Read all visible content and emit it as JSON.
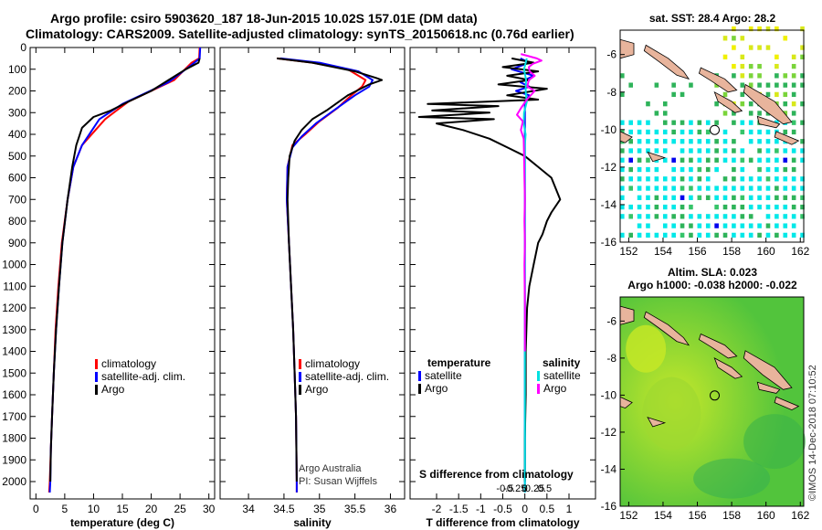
{
  "header": {
    "line1": "Argo profile: csiro 5903620_187 18-Jun-2015 10.02S 157.01E (DM data)",
    "line2": "Climatology: CARS2009. Satellite-adjusted climatology: synTS_20150618.nc (0.76d earlier)"
  },
  "colors": {
    "climatology": "#ff0000",
    "satellite": "#0000ff",
    "argo": "#000000",
    "sat_t": "#0000ff",
    "sat_s": "#00e0e0",
    "argo_s": "#ff00ff",
    "land": "#e8b49c"
  },
  "chart_data": [
    {
      "type": "line",
      "id": "temperature",
      "xlabel": "temperature (deg C)",
      "xlim": [
        -1,
        31
      ],
      "ylim": [
        0,
        2080
      ],
      "xticks": [
        "0",
        "5",
        "10",
        "15",
        "20",
        "25",
        "30"
      ],
      "yticks": [
        "0",
        "100",
        "200",
        "300",
        "400",
        "500",
        "600",
        "700",
        "800",
        "900",
        "1000",
        "1100",
        "1200",
        "1300",
        "1400",
        "1500",
        "1600",
        "1700",
        "1800",
        "1900",
        "2000"
      ],
      "legend": [
        "climatology",
        "satellite-adj. clim.",
        "Argo"
      ],
      "series": [
        {
          "name": "climatology",
          "color": "#ff0000",
          "points": [
            [
              28.4,
              0
            ],
            [
              28.3,
              50
            ],
            [
              27,
              70
            ],
            [
              24,
              150
            ],
            [
              20,
              200
            ],
            [
              16,
              250
            ],
            [
              12,
              330
            ],
            [
              8,
              450
            ],
            [
              6.5,
              550
            ],
            [
              5.5,
              700
            ],
            [
              4.5,
              900
            ],
            [
              3.9,
              1100
            ],
            [
              3.4,
              1300
            ],
            [
              3.1,
              1500
            ],
            [
              2.8,
              1700
            ],
            [
              2.6,
              1850
            ],
            [
              2.4,
              2000
            ],
            [
              2.3,
              2050
            ]
          ]
        },
        {
          "name": "satellite-adj. clim.",
          "color": "#0000ff",
          "points": [
            [
              28.5,
              0
            ],
            [
              28.4,
              50
            ],
            [
              27,
              80
            ],
            [
              23,
              160
            ],
            [
              19,
              210
            ],
            [
              15,
              260
            ],
            [
              11,
              330
            ],
            [
              8,
              450
            ],
            [
              6.5,
              550
            ],
            [
              5.5,
              700
            ],
            [
              4.6,
              900
            ],
            [
              4,
              1100
            ],
            [
              3.5,
              1300
            ],
            [
              3.1,
              1500
            ],
            [
              2.8,
              1700
            ],
            [
              2.6,
              1850
            ],
            [
              2.5,
              2000
            ],
            [
              2.4,
              2050
            ]
          ]
        },
        {
          "name": "Argo",
          "color": "#000000",
          "points": [
            [
              28.4,
              50
            ],
            [
              28.2,
              70
            ],
            [
              26,
              100
            ],
            [
              23,
              150
            ],
            [
              20,
              200
            ],
            [
              16,
              250
            ],
            [
              13,
              290
            ],
            [
              10,
              320
            ],
            [
              8,
              370
            ],
            [
              7,
              450
            ],
            [
              6.3,
              550
            ],
            [
              5.5,
              700
            ],
            [
              4.6,
              900
            ],
            [
              4,
              1100
            ],
            [
              3.5,
              1300
            ],
            [
              3.1,
              1500
            ],
            [
              2.8,
              1700
            ],
            [
              2.6,
              1850
            ],
            [
              2.5,
              2000
            ]
          ]
        }
      ]
    },
    {
      "type": "line",
      "id": "salinity",
      "xlabel": "salinity",
      "xlim": [
        33.6,
        36.2
      ],
      "ylim": [
        0,
        2080
      ],
      "xticks": [
        "34",
        "34.5",
        "35",
        "35.5",
        "36"
      ],
      "legend": [
        "climatology",
        "satellite-adj. clim.",
        "Argo"
      ],
      "annotation": [
        "Argo Australia",
        "PI: Susan Wijffels"
      ],
      "series": [
        {
          "name": "climatology",
          "color": "#ff0000",
          "points": [
            [
              34.4,
              50
            ],
            [
              34.9,
              70
            ],
            [
              35.4,
              100
            ],
            [
              35.65,
              150
            ],
            [
              35.6,
              180
            ],
            [
              35.45,
              220
            ],
            [
              35.25,
              280
            ],
            [
              35.0,
              340
            ],
            [
              34.8,
              400
            ],
            [
              34.62,
              450
            ],
            [
              34.55,
              550
            ],
            [
              34.54,
              700
            ],
            [
              34.57,
              900
            ],
            [
              34.6,
              1100
            ],
            [
              34.63,
              1300
            ],
            [
              34.65,
              1500
            ],
            [
              34.67,
              1700
            ],
            [
              34.68,
              2000
            ],
            [
              34.68,
              2050
            ]
          ]
        },
        {
          "name": "satellite-adj. clim.",
          "color": "#0000ff",
          "points": [
            [
              34.45,
              50
            ],
            [
              35.0,
              70
            ],
            [
              35.55,
              110
            ],
            [
              35.75,
              150
            ],
            [
              35.7,
              180
            ],
            [
              35.5,
              220
            ],
            [
              35.2,
              290
            ],
            [
              34.95,
              350
            ],
            [
              34.75,
              410
            ],
            [
              34.62,
              460
            ],
            [
              34.55,
              550
            ],
            [
              34.54,
              700
            ],
            [
              34.57,
              900
            ],
            [
              34.6,
              1100
            ],
            [
              34.63,
              1300
            ],
            [
              34.65,
              1500
            ],
            [
              34.67,
              1700
            ],
            [
              34.68,
              2000
            ],
            [
              34.68,
              2050
            ]
          ]
        },
        {
          "name": "Argo",
          "color": "#000000",
          "points": [
            [
              34.4,
              50
            ],
            [
              34.9,
              70
            ],
            [
              35.5,
              110
            ],
            [
              35.8,
              140
            ],
            [
              35.88,
              150
            ],
            [
              35.7,
              170
            ],
            [
              35.4,
              220
            ],
            [
              35.1,
              290
            ],
            [
              34.9,
              330
            ],
            [
              34.75,
              380
            ],
            [
              34.65,
              430
            ],
            [
              34.58,
              500
            ],
            [
              34.56,
              600
            ],
            [
              34.55,
              700
            ],
            [
              34.57,
              900
            ],
            [
              34.6,
              1100
            ],
            [
              34.63,
              1300
            ],
            [
              34.65,
              1500
            ],
            [
              34.67,
              1700
            ],
            [
              34.68,
              2000
            ]
          ]
        }
      ]
    },
    {
      "type": "line",
      "id": "differences",
      "xlabel": "T difference from climatology",
      "xlim": [
        -2.6,
        1.6
      ],
      "ylim": [
        0,
        2080
      ],
      "xticks": [
        "-2",
        "-1.5",
        "-1",
        "-0.5",
        "0",
        "0.5",
        "1"
      ],
      "top_axis_title": "S difference from climatology",
      "top_ticks": [
        "-0.5",
        "-0.25",
        "0",
        "0.25",
        "0.5"
      ],
      "legend_left_title": "temperature",
      "legend_left": [
        "satellite",
        "Argo"
      ],
      "legend_right_title": "salinity",
      "legend_right": [
        "satellite",
        "Argo"
      ],
      "series": [
        {
          "name": "T satellite",
          "color": "#0000ff",
          "points": [
            [
              -0.1,
              50
            ],
            [
              0.1,
              70
            ],
            [
              -0.3,
              100
            ],
            [
              0.2,
              130
            ],
            [
              -0.1,
              160
            ],
            [
              0.1,
              180
            ],
            [
              -0.2,
              200
            ],
            [
              0.1,
              220
            ],
            [
              0,
              250
            ],
            [
              0,
              300
            ],
            [
              0,
              400
            ],
            [
              0,
              500
            ],
            [
              0,
              700
            ],
            [
              0,
              1000
            ],
            [
              0,
              1400
            ],
            [
              0,
              1800
            ],
            [
              0,
              2050
            ]
          ]
        },
        {
          "name": "T Argo",
          "color": "#000000",
          "points": [
            [
              -0.3,
              50
            ],
            [
              0.2,
              70
            ],
            [
              -0.5,
              90
            ],
            [
              0.3,
              110
            ],
            [
              -0.4,
              130
            ],
            [
              0.1,
              150
            ],
            [
              -0.6,
              170
            ],
            [
              0.5,
              190
            ],
            [
              -0.4,
              220
            ],
            [
              0.3,
              240
            ],
            [
              -2.2,
              260
            ],
            [
              -0.6,
              270
            ],
            [
              -2.1,
              290
            ],
            [
              -0.8,
              300
            ],
            [
              -2.4,
              320
            ],
            [
              -0.7,
              330
            ],
            [
              -2.0,
              350
            ],
            [
              -1.4,
              380
            ],
            [
              -0.8,
              420
            ],
            [
              -0.3,
              470
            ],
            [
              0,
              500
            ],
            [
              0.3,
              550
            ],
            [
              0.6,
              600
            ],
            [
              0.7,
              650
            ],
            [
              0.8,
              700
            ],
            [
              0.6,
              760
            ],
            [
              0.5,
              800
            ],
            [
              0.4,
              860
            ],
            [
              0.3,
              900
            ],
            [
              0.2,
              1000
            ],
            [
              0.1,
              1100
            ],
            [
              0.05,
              1200
            ],
            [
              0.02,
              1400
            ],
            [
              0.02,
              1600
            ],
            [
              0,
              1800
            ],
            [
              0,
              2000
            ]
          ]
        },
        {
          "name": "S satellite",
          "color": "#00e0e0",
          "points": [
            [
              0.05,
              50
            ],
            [
              -0.02,
              100
            ],
            [
              0.03,
              150
            ],
            [
              0.02,
              200
            ],
            [
              0.05,
              250
            ],
            [
              -0.02,
              300
            ],
            [
              -0.03,
              350
            ],
            [
              0.02,
              400
            ],
            [
              0,
              450
            ],
            [
              0,
              500
            ],
            [
              0,
              700
            ],
            [
              0,
              1000
            ],
            [
              0,
              1400
            ],
            [
              0,
              1800
            ],
            [
              0,
              2050
            ]
          ]
        },
        {
          "name": "S Argo",
          "color": "#ff00ff",
          "points": [
            [
              -0.1,
              30
            ],
            [
              0.1,
              40
            ],
            [
              0.3,
              50
            ],
            [
              0.42,
              60
            ],
            [
              0.2,
              75
            ],
            [
              0.1,
              90
            ],
            [
              0.12,
              110
            ],
            [
              0.25,
              130
            ],
            [
              0.1,
              150
            ],
            [
              0.06,
              180
            ],
            [
              0.25,
              200
            ],
            [
              0.05,
              240
            ],
            [
              -0.1,
              280
            ],
            [
              -0.2,
              310
            ],
            [
              -0.05,
              340
            ],
            [
              -0.1,
              380
            ],
            [
              -0.03,
              420
            ],
            [
              -0.02,
              500
            ],
            [
              -0.01,
              600
            ],
            [
              0,
              700
            ],
            [
              -0.01,
              800
            ],
            [
              0,
              900
            ],
            [
              -0.01,
              1000
            ],
            [
              0,
              1200
            ],
            [
              0,
              1400
            ]
          ]
        }
      ]
    }
  ],
  "map_sst": {
    "title": "sat. SST: 28.4 Argo: 28.2",
    "xticks": [
      "152",
      "154",
      "156",
      "158",
      "160",
      "162"
    ],
    "yticks": [
      "-6",
      "-8",
      "-10",
      "-12",
      "-14",
      "-16"
    ],
    "xlim": [
      151.5,
      162.2
    ],
    "ylim": [
      -16,
      -4.7
    ],
    "profile": [
      157.01,
      -10.02
    ]
  },
  "map_sla": {
    "title1": "Altim. SLA: 0.023",
    "title2": "Argo h1000: -0.038 h2000: -0.022",
    "xticks": [
      "152",
      "154",
      "156",
      "158",
      "160",
      "162"
    ],
    "yticks": [
      "-6",
      "-8",
      "-10",
      "-12",
      "-14",
      "-16"
    ],
    "xlim": [
      151.5,
      162.2
    ],
    "ylim": [
      -16,
      -4.7
    ],
    "profile": [
      157.01,
      -10.02
    ]
  },
  "footer": "©IMOS 14-Dec-2018 07:10:52"
}
